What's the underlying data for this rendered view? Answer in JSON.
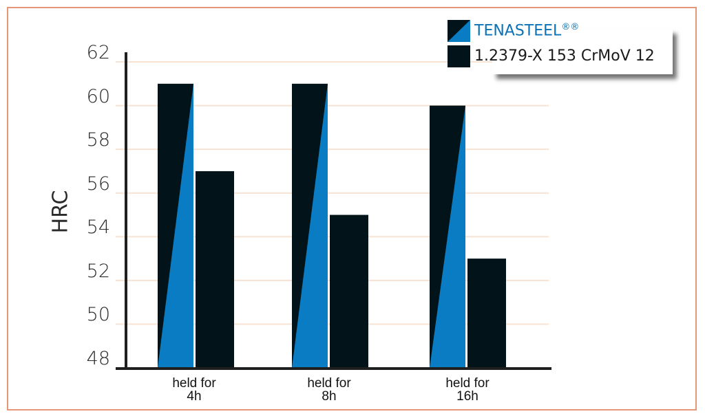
{
  "chart_data": {
    "type": "bar",
    "title": "",
    "xlabel": "",
    "ylabel": "HRC",
    "ylim": [
      48,
      62
    ],
    "yticks": [
      48,
      50,
      52,
      54,
      56,
      58,
      60,
      62
    ],
    "grid": true,
    "legend_position": "top-right",
    "categories": [
      "held for 4h",
      "held for 8h",
      "held for 16h"
    ],
    "category_lines": [
      [
        "held for",
        "4h"
      ],
      [
        "held for",
        "8h"
      ],
      [
        "held for",
        "16h"
      ]
    ],
    "series": [
      {
        "name": "TENASTEEL®®",
        "values": [
          61,
          61,
          60
        ],
        "style": "diagonal dark/blue split"
      },
      {
        "name": "1.2379-X 153 CrMoV 12",
        "values": [
          57,
          55,
          53
        ],
        "style": "solid dark"
      }
    ]
  },
  "legend": {
    "items": [
      {
        "label": "TENASTEEL",
        "suffix": "®®",
        "color": "#0b72b5"
      },
      {
        "label": "1.2379-X 153 CrMoV 12",
        "suffix": "",
        "color": "#1a1a1a"
      }
    ]
  },
  "colors": {
    "dark": "#02141a",
    "blue": "#0a7cc4",
    "grid": "#f6e3d3",
    "axis": "#1f1f1f",
    "frame": "#e49676"
  }
}
